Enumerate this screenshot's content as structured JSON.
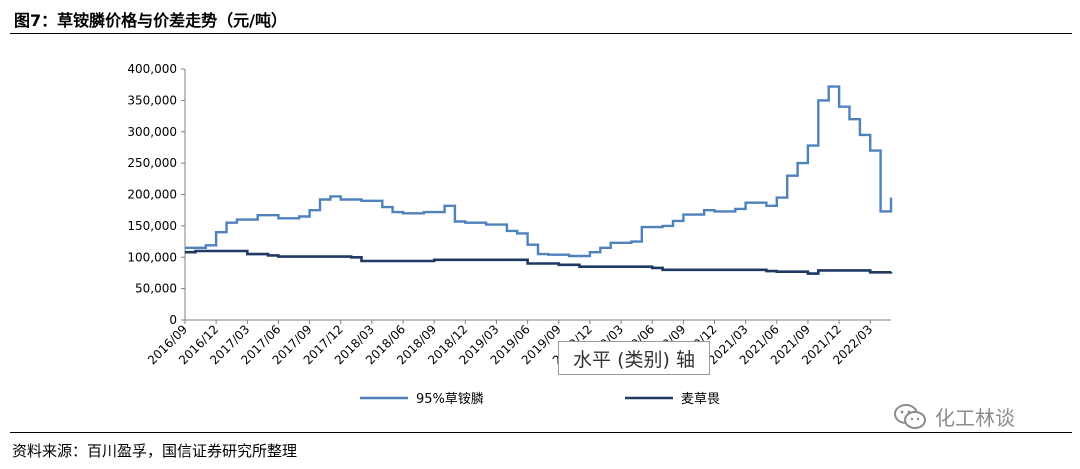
{
  "header": {
    "title": "图7：草铵膦价格与价差走势（元/吨）"
  },
  "footer": {
    "source": "资料来源：百川盈孚，国信证券研究所整理"
  },
  "tooltip": {
    "text": "水平 (类别) 轴"
  },
  "watermark": {
    "text": "化工林谈",
    "icon": "wechat-icon"
  },
  "chart_data": {
    "type": "line",
    "title": "图7：草铵膦价格与价差走势（元/吨）",
    "xlabel": "",
    "ylabel": "",
    "ylim": [
      0,
      400000
    ],
    "yticks": [
      0,
      50000,
      100000,
      150000,
      200000,
      250000,
      300000,
      350000,
      400000
    ],
    "ytick_labels": [
      "0",
      "50,000",
      "100,000",
      "150,000",
      "200,000",
      "250,000",
      "300,000",
      "350,000",
      "400,000"
    ],
    "xlim": [
      "2016/09",
      "2022/05"
    ],
    "xtick_labels": [
      "2016/09",
      "2016/12",
      "2017/03",
      "2017/06",
      "2017/09",
      "2017/12",
      "2018/03",
      "2018/06",
      "2018/09",
      "2018/12",
      "2019/03",
      "2019/06",
      "2019/09",
      "2019/12",
      "2020/03",
      "2020/06",
      "2020/09",
      "2020/12",
      "2021/03",
      "2021/06",
      "2021/09",
      "2021/12",
      "2022/03"
    ],
    "grid": false,
    "legend_position": "bottom",
    "series": [
      {
        "name": "95%草铵膦",
        "color": "#4f81bd",
        "step": true,
        "x": [
          "2016/09",
          "2016/11",
          "2016/12",
          "2017/01",
          "2017/02",
          "2017/04",
          "2017/06",
          "2017/08",
          "2017/09",
          "2017/10",
          "2017/11",
          "2017/12",
          "2018/02",
          "2018/04",
          "2018/05",
          "2018/06",
          "2018/08",
          "2018/10",
          "2018/11",
          "2018/12",
          "2019/02",
          "2019/04",
          "2019/05",
          "2019/06",
          "2019/07",
          "2019/08",
          "2019/10",
          "2019/12",
          "2020/01",
          "2020/02",
          "2020/04",
          "2020/05",
          "2020/07",
          "2020/08",
          "2020/09",
          "2020/11",
          "2020/12",
          "2021/02",
          "2021/03",
          "2021/05",
          "2021/06",
          "2021/07",
          "2021/08",
          "2021/09",
          "2021/10",
          "2021/11",
          "2021/12",
          "2022/01",
          "2022/02",
          "2022/03",
          "2022/04",
          "2022/05"
        ],
        "values": [
          115000,
          119000,
          140000,
          155000,
          160000,
          167000,
          162000,
          165000,
          175000,
          192000,
          197000,
          192000,
          190000,
          180000,
          172000,
          170000,
          172000,
          182000,
          157000,
          155000,
          152000,
          142000,
          138000,
          120000,
          105000,
          104000,
          102000,
          108000,
          115000,
          123000,
          125000,
          148000,
          150000,
          158000,
          168000,
          175000,
          173000,
          177000,
          187000,
          182000,
          195000,
          230000,
          250000,
          278000,
          350000,
          372000,
          340000,
          320000,
          295000,
          270000,
          173000,
          195000
        ]
      },
      {
        "name": "麦草畏",
        "color": "#1f3864",
        "step": true,
        "x": [
          "2016/09",
          "2016/10",
          "2017/03",
          "2017/05",
          "2017/06",
          "2018/01",
          "2018/02",
          "2018/09",
          "2019/06",
          "2019/09",
          "2019/11",
          "2020/06",
          "2020/07",
          "2021/05",
          "2021/06",
          "2021/09",
          "2021/10",
          "2022/03",
          "2022/05"
        ],
        "values": [
          108000,
          110000,
          105000,
          103000,
          101000,
          100000,
          94000,
          96000,
          90000,
          88000,
          85000,
          83000,
          80000,
          78000,
          77000,
          74000,
          79000,
          76000,
          77000
        ]
      }
    ]
  }
}
